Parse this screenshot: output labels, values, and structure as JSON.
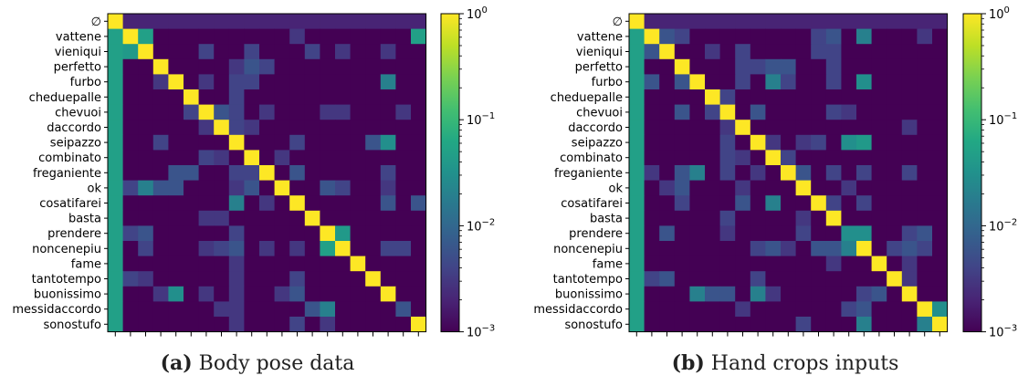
{
  "chart_data": [
    {
      "type": "heatmap",
      "categories": [
        "∅",
        "vattene",
        "vieniqui",
        "perfetto",
        "furbo",
        "cheduepalle",
        "chevuoi",
        "daccordo",
        "seipazzo",
        "combinato",
        "freganiente",
        "ok",
        "cosatifarei",
        "basta",
        "prendere",
        "noncenepiu",
        "fame",
        "tantotempo",
        "buonissimo",
        "messidaccordo",
        "sonostufo"
      ],
      "color_scale": "log",
      "colormap": "viridis",
      "vmin": 0.001,
      "vmax": 1,
      "colorbar_ticks": [
        {
          "value": 1,
          "label": "10",
          "exp": "0"
        },
        {
          "value": 0.1,
          "label": "10",
          "exp": "−1"
        },
        {
          "value": 0.01,
          "label": "10",
          "exp": "−2"
        },
        {
          "value": 0.001,
          "label": "10",
          "exp": "−3"
        }
      ],
      "diagonal_value": 1,
      "first_column_value": 0.05,
      "first_row_value": 0.002,
      "background_value": 0.001,
      "cells": [
        [
          1,
          2,
          0.05
        ],
        [
          1,
          20,
          0.05
        ],
        [
          1,
          12,
          0.003
        ],
        [
          2,
          1,
          0.04
        ],
        [
          2,
          6,
          0.004
        ],
        [
          2,
          9,
          0.004
        ],
        [
          2,
          13,
          0.004
        ],
        [
          2,
          15,
          0.003
        ],
        [
          2,
          18,
          0.003
        ],
        [
          3,
          10,
          0.004
        ],
        [
          3,
          9,
          0.006
        ],
        [
          3,
          8,
          0.003
        ],
        [
          4,
          9,
          0.004
        ],
        [
          4,
          8,
          0.004
        ],
        [
          4,
          6,
          0.003
        ],
        [
          4,
          18,
          0.02
        ],
        [
          4,
          3,
          0.003
        ],
        [
          5,
          8,
          0.004
        ],
        [
          6,
          7,
          0.006
        ],
        [
          6,
          8,
          0.004
        ],
        [
          6,
          5,
          0.004
        ],
        [
          6,
          10,
          0.003
        ],
        [
          6,
          14,
          0.003
        ],
        [
          6,
          15,
          0.003
        ],
        [
          6,
          19,
          0.003
        ],
        [
          7,
          8,
          0.004
        ],
        [
          7,
          9,
          0.003
        ],
        [
          7,
          6,
          0.003
        ],
        [
          8,
          3,
          0.004
        ],
        [
          8,
          12,
          0.004
        ],
        [
          8,
          17,
          0.006
        ],
        [
          8,
          18,
          0.03
        ],
        [
          9,
          6,
          0.004
        ],
        [
          9,
          7,
          0.003
        ],
        [
          9,
          11,
          0.003
        ],
        [
          10,
          4,
          0.006
        ],
        [
          10,
          5,
          0.006
        ],
        [
          10,
          8,
          0.004
        ],
        [
          10,
          9,
          0.004
        ],
        [
          10,
          12,
          0.006
        ],
        [
          10,
          18,
          0.004
        ],
        [
          11,
          1,
          0.004
        ],
        [
          11,
          2,
          0.02
        ],
        [
          11,
          3,
          0.006
        ],
        [
          11,
          4,
          0.006
        ],
        [
          11,
          8,
          0.003
        ],
        [
          11,
          9,
          0.006
        ],
        [
          11,
          14,
          0.006
        ],
        [
          11,
          15,
          0.004
        ],
        [
          11,
          18,
          0.003
        ],
        [
          12,
          8,
          0.02
        ],
        [
          12,
          10,
          0.003
        ],
        [
          12,
          18,
          0.006
        ],
        [
          12,
          20,
          0.006
        ],
        [
          13,
          6,
          0.003
        ],
        [
          13,
          7,
          0.003
        ],
        [
          14,
          1,
          0.004
        ],
        [
          14,
          2,
          0.006
        ],
        [
          14,
          8,
          0.004
        ],
        [
          14,
          15,
          0.04
        ],
        [
          15,
          2,
          0.004
        ],
        [
          15,
          6,
          0.003
        ],
        [
          15,
          7,
          0.004
        ],
        [
          15,
          8,
          0.006
        ],
        [
          15,
          10,
          0.003
        ],
        [
          15,
          12,
          0.003
        ],
        [
          15,
          14,
          0.05
        ],
        [
          15,
          18,
          0.004
        ],
        [
          15,
          19,
          0.004
        ],
        [
          16,
          8,
          0.003
        ],
        [
          17,
          1,
          0.004
        ],
        [
          17,
          2,
          0.003
        ],
        [
          17,
          8,
          0.003
        ],
        [
          17,
          12,
          0.004
        ],
        [
          18,
          3,
          0.003
        ],
        [
          18,
          4,
          0.03
        ],
        [
          18,
          6,
          0.003
        ],
        [
          18,
          8,
          0.003
        ],
        [
          18,
          11,
          0.003
        ],
        [
          18,
          12,
          0.006
        ],
        [
          19,
          7,
          0.003
        ],
        [
          19,
          8,
          0.003
        ],
        [
          19,
          13,
          0.006
        ],
        [
          19,
          14,
          0.02
        ],
        [
          19,
          19,
          0.006
        ],
        [
          20,
          8,
          0.003
        ],
        [
          20,
          12,
          0.004
        ],
        [
          20,
          14,
          0.003
        ]
      ]
    },
    {
      "type": "heatmap",
      "categories": [
        "∅",
        "vattene",
        "vieniqui",
        "perfetto",
        "furbo",
        "cheduepalle",
        "chevuoi",
        "daccordo",
        "seipazzo",
        "combinato",
        "freganiente",
        "ok",
        "cosatifarei",
        "basta",
        "prendere",
        "noncenepiu",
        "fame",
        "tantotempo",
        "buonissimo",
        "messidaccordo",
        "sonostufo"
      ],
      "color_scale": "log",
      "colormap": "viridis",
      "vmin": 0.001,
      "vmax": 1,
      "colorbar_ticks": [
        {
          "value": 1,
          "label": "10",
          "exp": "0"
        },
        {
          "value": 0.1,
          "label": "10",
          "exp": "−1"
        },
        {
          "value": 0.01,
          "label": "10",
          "exp": "−2"
        },
        {
          "value": 0.001,
          "label": "10",
          "exp": "−3"
        }
      ],
      "diagonal_value": 1,
      "first_column_value": 0.05,
      "first_row_value": 0.002,
      "background_value": 0.001,
      "cells": [
        [
          1,
          2,
          0.006
        ],
        [
          1,
          3,
          0.004
        ],
        [
          1,
          12,
          0.004
        ],
        [
          1,
          13,
          0.006
        ],
        [
          1,
          15,
          0.02
        ],
        [
          1,
          19,
          0.003
        ],
        [
          2,
          1,
          0.006
        ],
        [
          2,
          5,
          0.003
        ],
        [
          2,
          7,
          0.004
        ],
        [
          2,
          12,
          0.004
        ],
        [
          2,
          13,
          0.004
        ],
        [
          3,
          7,
          0.004
        ],
        [
          3,
          8,
          0.004
        ],
        [
          3,
          9,
          0.006
        ],
        [
          3,
          10,
          0.006
        ],
        [
          3,
          13,
          0.004
        ],
        [
          4,
          1,
          0.006
        ],
        [
          4,
          3,
          0.006
        ],
        [
          4,
          7,
          0.004
        ],
        [
          4,
          9,
          0.02
        ],
        [
          4,
          10,
          0.004
        ],
        [
          4,
          13,
          0.004
        ],
        [
          4,
          15,
          0.03
        ],
        [
          5,
          6,
          0.004
        ],
        [
          6,
          3,
          0.006
        ],
        [
          6,
          5,
          0.004
        ],
        [
          6,
          8,
          0.006
        ],
        [
          6,
          13,
          0.004
        ],
        [
          6,
          14,
          0.003
        ],
        [
          7,
          6,
          0.003
        ],
        [
          7,
          18,
          0.003
        ],
        [
          8,
          6,
          0.004
        ],
        [
          8,
          9,
          0.003
        ],
        [
          8,
          11,
          0.003
        ],
        [
          8,
          12,
          0.004
        ],
        [
          8,
          14,
          0.03
        ],
        [
          8,
          15,
          0.04
        ],
        [
          9,
          6,
          0.004
        ],
        [
          9,
          7,
          0.003
        ],
        [
          9,
          10,
          0.004
        ],
        [
          10,
          1,
          0.003
        ],
        [
          10,
          3,
          0.006
        ],
        [
          10,
          4,
          0.02
        ],
        [
          10,
          6,
          0.004
        ],
        [
          10,
          8,
          0.003
        ],
        [
          10,
          11,
          0.006
        ],
        [
          10,
          13,
          0.004
        ],
        [
          10,
          15,
          0.004
        ],
        [
          10,
          18,
          0.004
        ],
        [
          11,
          2,
          0.003
        ],
        [
          11,
          3,
          0.006
        ],
        [
          11,
          7,
          0.003
        ],
        [
          11,
          14,
          0.003
        ],
        [
          12,
          3,
          0.004
        ],
        [
          12,
          7,
          0.006
        ],
        [
          12,
          9,
          0.02
        ],
        [
          12,
          13,
          0.004
        ],
        [
          12,
          15,
          0.004
        ],
        [
          13,
          6,
          0.004
        ],
        [
          13,
          11,
          0.003
        ],
        [
          14,
          2,
          0.006
        ],
        [
          14,
          6,
          0.003
        ],
        [
          14,
          11,
          0.004
        ],
        [
          14,
          14,
          0.03
        ],
        [
          14,
          15,
          0.03
        ],
        [
          14,
          18,
          0.004
        ],
        [
          14,
          19,
          0.006
        ],
        [
          15,
          8,
          0.004
        ],
        [
          15,
          9,
          0.006
        ],
        [
          15,
          10,
          0.003
        ],
        [
          15,
          12,
          0.006
        ],
        [
          15,
          13,
          0.006
        ],
        [
          15,
          14,
          0.02
        ],
        [
          15,
          17,
          0.004
        ],
        [
          15,
          18,
          0.006
        ],
        [
          15,
          19,
          0.004
        ],
        [
          16,
          13,
          0.003
        ],
        [
          16,
          18,
          0.003
        ],
        [
          17,
          1,
          0.004
        ],
        [
          17,
          2,
          0.006
        ],
        [
          17,
          8,
          0.004
        ],
        [
          17,
          18,
          0.003
        ],
        [
          18,
          4,
          0.02
        ],
        [
          18,
          5,
          0.006
        ],
        [
          18,
          6,
          0.006
        ],
        [
          18,
          8,
          0.02
        ],
        [
          18,
          9,
          0.003
        ],
        [
          18,
          15,
          0.004
        ],
        [
          18,
          16,
          0.006
        ],
        [
          19,
          7,
          0.003
        ],
        [
          19,
          14,
          0.004
        ],
        [
          19,
          15,
          0.006
        ],
        [
          19,
          20,
          0.03
        ],
        [
          20,
          11,
          0.004
        ],
        [
          20,
          15,
          0.02
        ],
        [
          20,
          19,
          0.02
        ]
      ]
    }
  ],
  "captions": [
    {
      "letter": "(a)",
      "text": "Body pose data"
    },
    {
      "letter": "(b)",
      "text": "Hand crops inputs"
    }
  ]
}
